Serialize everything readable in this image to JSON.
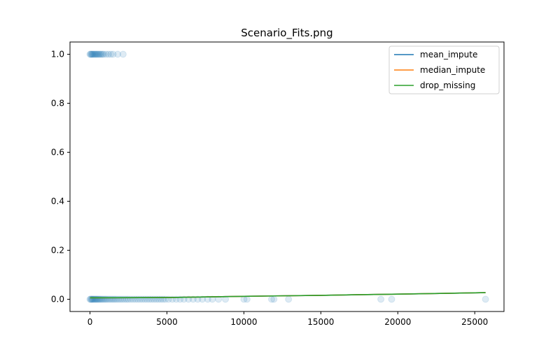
{
  "chart_data": {
    "type": "scatter",
    "title": "Scenario_Fits.png",
    "xlabel": "",
    "ylabel": "",
    "xlim": [
      -1300,
      26900
    ],
    "ylim": [
      -0.05,
      1.05
    ],
    "x_ticks": [
      0,
      5000,
      10000,
      15000,
      20000,
      25000
    ],
    "x_tick_labels": [
      "0",
      "5000",
      "10000",
      "15000",
      "20000",
      "25000"
    ],
    "y_ticks": [
      0.0,
      0.2,
      0.4,
      0.6,
      0.8,
      1.0
    ],
    "y_tick_labels": [
      "0.0",
      "0.2",
      "0.4",
      "0.6",
      "0.8",
      "1.0"
    ],
    "grid": false,
    "legend": {
      "placement": "top-right",
      "entries": [
        {
          "name": "mean_impute",
          "color": "#1f77b4"
        },
        {
          "name": "median_impute",
          "color": "#ff7f0e"
        },
        {
          "name": "drop_missing",
          "color": "#2ca02c"
        }
      ]
    },
    "scatter": {
      "color": "#1f77b4",
      "alpha": 0.15,
      "points": [
        {
          "x": 0,
          "y": 1
        },
        {
          "x": 40,
          "y": 1
        },
        {
          "x": 80,
          "y": 1
        },
        {
          "x": 120,
          "y": 1
        },
        {
          "x": 160,
          "y": 1
        },
        {
          "x": 200,
          "y": 1
        },
        {
          "x": 250,
          "y": 1
        },
        {
          "x": 300,
          "y": 1
        },
        {
          "x": 350,
          "y": 1
        },
        {
          "x": 400,
          "y": 1
        },
        {
          "x": 450,
          "y": 1
        },
        {
          "x": 500,
          "y": 1
        },
        {
          "x": 560,
          "y": 1
        },
        {
          "x": 620,
          "y": 1
        },
        {
          "x": 680,
          "y": 1
        },
        {
          "x": 750,
          "y": 1
        },
        {
          "x": 820,
          "y": 1
        },
        {
          "x": 900,
          "y": 1
        },
        {
          "x": 1050,
          "y": 1
        },
        {
          "x": 1200,
          "y": 1
        },
        {
          "x": 1350,
          "y": 1
        },
        {
          "x": 1500,
          "y": 1
        },
        {
          "x": 1800,
          "y": 1
        },
        {
          "x": 2150,
          "y": 1
        },
        {
          "x": 0,
          "y": 0
        },
        {
          "x": 40,
          "y": 0
        },
        {
          "x": 80,
          "y": 0
        },
        {
          "x": 120,
          "y": 0
        },
        {
          "x": 160,
          "y": 0
        },
        {
          "x": 200,
          "y": 0
        },
        {
          "x": 250,
          "y": 0
        },
        {
          "x": 300,
          "y": 0
        },
        {
          "x": 350,
          "y": 0
        },
        {
          "x": 400,
          "y": 0
        },
        {
          "x": 450,
          "y": 0
        },
        {
          "x": 500,
          "y": 0
        },
        {
          "x": 560,
          "y": 0
        },
        {
          "x": 620,
          "y": 0
        },
        {
          "x": 680,
          "y": 0
        },
        {
          "x": 750,
          "y": 0
        },
        {
          "x": 820,
          "y": 0
        },
        {
          "x": 900,
          "y": 0
        },
        {
          "x": 980,
          "y": 0
        },
        {
          "x": 1060,
          "y": 0
        },
        {
          "x": 1150,
          "y": 0
        },
        {
          "x": 1250,
          "y": 0
        },
        {
          "x": 1350,
          "y": 0
        },
        {
          "x": 1450,
          "y": 0
        },
        {
          "x": 1550,
          "y": 0
        },
        {
          "x": 1650,
          "y": 0
        },
        {
          "x": 1760,
          "y": 0
        },
        {
          "x": 1880,
          "y": 0
        },
        {
          "x": 2000,
          "y": 0
        },
        {
          "x": 2120,
          "y": 0
        },
        {
          "x": 2250,
          "y": 0
        },
        {
          "x": 2380,
          "y": 0
        },
        {
          "x": 2500,
          "y": 0
        },
        {
          "x": 2650,
          "y": 0
        },
        {
          "x": 2800,
          "y": 0
        },
        {
          "x": 2950,
          "y": 0
        },
        {
          "x": 3100,
          "y": 0
        },
        {
          "x": 3250,
          "y": 0
        },
        {
          "x": 3400,
          "y": 0
        },
        {
          "x": 3550,
          "y": 0
        },
        {
          "x": 3700,
          "y": 0
        },
        {
          "x": 3850,
          "y": 0
        },
        {
          "x": 4000,
          "y": 0
        },
        {
          "x": 4150,
          "y": 0
        },
        {
          "x": 4300,
          "y": 0
        },
        {
          "x": 4450,
          "y": 0
        },
        {
          "x": 4600,
          "y": 0
        },
        {
          "x": 4750,
          "y": 0
        },
        {
          "x": 4900,
          "y": 0
        },
        {
          "x": 5100,
          "y": 0
        },
        {
          "x": 5350,
          "y": 0
        },
        {
          "x": 5600,
          "y": 0
        },
        {
          "x": 5850,
          "y": 0
        },
        {
          "x": 6100,
          "y": 0
        },
        {
          "x": 6400,
          "y": 0
        },
        {
          "x": 6700,
          "y": 0
        },
        {
          "x": 7000,
          "y": 0
        },
        {
          "x": 7300,
          "y": 0
        },
        {
          "x": 7650,
          "y": 0
        },
        {
          "x": 7950,
          "y": 0
        },
        {
          "x": 8350,
          "y": 0
        },
        {
          "x": 8800,
          "y": 0
        },
        {
          "x": 10000,
          "y": 0
        },
        {
          "x": 10200,
          "y": 0
        },
        {
          "x": 11800,
          "y": 0
        },
        {
          "x": 11950,
          "y": 0
        },
        {
          "x": 12900,
          "y": 0
        },
        {
          "x": 18900,
          "y": 0
        },
        {
          "x": 19600,
          "y": 0
        },
        {
          "x": 25700,
          "y": 0
        }
      ]
    },
    "series": [
      {
        "name": "mean_impute",
        "color": "#1f77b4",
        "x": [
          0,
          5000,
          10000,
          15000,
          20000,
          25700
        ],
        "y": [
          0.006,
          0.007,
          0.012,
          0.016,
          0.021,
          0.027
        ]
      },
      {
        "name": "median_impute",
        "color": "#ff7f0e",
        "x": [
          0,
          5000,
          10000,
          15000,
          20000,
          25700
        ],
        "y": [
          0.006,
          0.007,
          0.012,
          0.016,
          0.021,
          0.027
        ]
      },
      {
        "name": "drop_missing",
        "color": "#2ca02c",
        "x": [
          0,
          5000,
          10000,
          15000,
          20000,
          25700
        ],
        "y": [
          0.006,
          0.007,
          0.012,
          0.016,
          0.021,
          0.027
        ]
      }
    ]
  }
}
